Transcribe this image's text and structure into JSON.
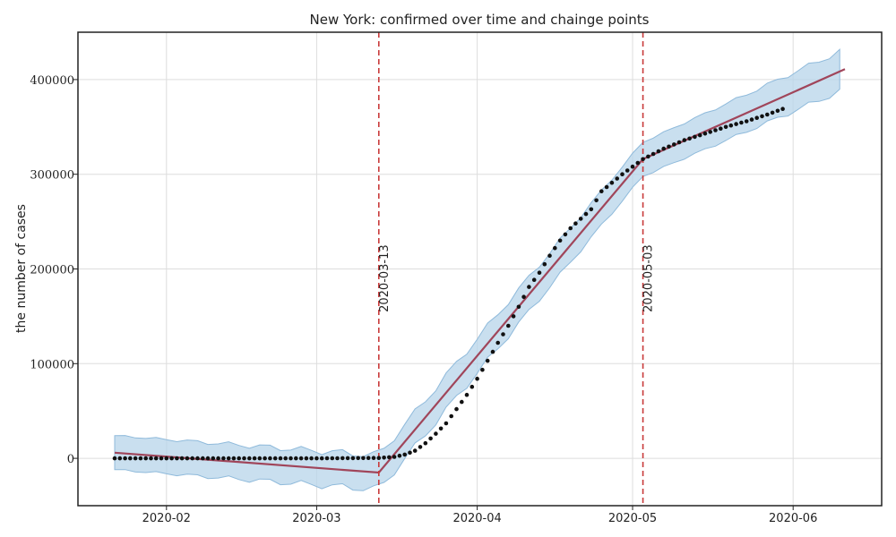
{
  "chart_data": {
    "type": "line",
    "title": "New York: confirmed over time and chainge points",
    "xlabel": "",
    "ylabel": "the number of cases",
    "x_range": [
      "2020-01-22",
      "2020-06-11"
    ],
    "ylim": [
      -50000,
      450000
    ],
    "x_ticks": [
      {
        "date": "2020-02-01",
        "label": "2020-02"
      },
      {
        "date": "2020-03-01",
        "label": "2020-03"
      },
      {
        "date": "2020-04-01",
        "label": "2020-04"
      },
      {
        "date": "2020-05-01",
        "label": "2020-05"
      },
      {
        "date": "2020-06-01",
        "label": "2020-06"
      }
    ],
    "y_ticks": [
      0,
      100000,
      200000,
      300000,
      400000
    ],
    "grid": true,
    "colors": {
      "observed": "#111111",
      "trend": "#a0455a",
      "interval": "#b7d4ea",
      "changepoint": "#c93a3a"
    },
    "change_points": [
      {
        "date": "2020-03-13",
        "label": "2020-03-13"
      },
      {
        "date": "2020-05-03",
        "label": "2020-05-03"
      }
    ],
    "trend": [
      {
        "date": "2020-01-22",
        "value": 6000
      },
      {
        "date": "2020-03-13",
        "value": -15000
      },
      {
        "date": "2020-05-03",
        "value": 316000
      },
      {
        "date": "2020-06-11",
        "value": 411000
      }
    ],
    "interval_half_width": 18000,
    "observed": [
      {
        "date": "2020-01-22",
        "value": 0
      },
      {
        "date": "2020-03-01",
        "value": 0
      },
      {
        "date": "2020-03-13",
        "value": 400
      },
      {
        "date": "2020-03-16",
        "value": 1500
      },
      {
        "date": "2020-03-18",
        "value": 4000
      },
      {
        "date": "2020-03-20",
        "value": 8000
      },
      {
        "date": "2020-03-22",
        "value": 16000
      },
      {
        "date": "2020-03-24",
        "value": 26000
      },
      {
        "date": "2020-03-26",
        "value": 37000
      },
      {
        "date": "2020-03-28",
        "value": 52000
      },
      {
        "date": "2020-03-30",
        "value": 67000
      },
      {
        "date": "2020-04-01",
        "value": 84000
      },
      {
        "date": "2020-04-03",
        "value": 103000
      },
      {
        "date": "2020-04-05",
        "value": 122000
      },
      {
        "date": "2020-04-07",
        "value": 140000
      },
      {
        "date": "2020-04-09",
        "value": 160000
      },
      {
        "date": "2020-04-11",
        "value": 181000
      },
      {
        "date": "2020-04-13",
        "value": 196000
      },
      {
        "date": "2020-04-15",
        "value": 214000
      },
      {
        "date": "2020-04-17",
        "value": 230000
      },
      {
        "date": "2020-04-19",
        "value": 243000
      },
      {
        "date": "2020-04-21",
        "value": 253000
      },
      {
        "date": "2020-04-23",
        "value": 263000
      },
      {
        "date": "2020-04-25",
        "value": 282000
      },
      {
        "date": "2020-04-27",
        "value": 291000
      },
      {
        "date": "2020-04-29",
        "value": 300000
      },
      {
        "date": "2020-05-01",
        "value": 308000
      },
      {
        "date": "2020-05-03",
        "value": 316000
      },
      {
        "date": "2020-05-07",
        "value": 327000
      },
      {
        "date": "2020-05-11",
        "value": 336000
      },
      {
        "date": "2020-05-15",
        "value": 343000
      },
      {
        "date": "2020-05-19",
        "value": 350000
      },
      {
        "date": "2020-05-23",
        "value": 356000
      },
      {
        "date": "2020-05-27",
        "value": 363000
      },
      {
        "date": "2020-05-30",
        "value": 369000
      }
    ]
  }
}
